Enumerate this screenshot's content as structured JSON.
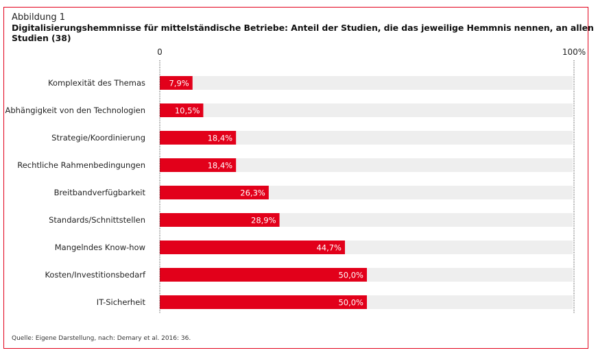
{
  "header": {
    "figure_label": "Abbildung 1",
    "title": "Digitalisierungshemmnisse für mittelständische Betriebe: Anteil der Studien, die das jeweilige Hemmnis nennen, an allen Studien (38)"
  },
  "footer": {
    "source": "Quelle: Eigene Darstellung, nach: Demary et al. 2016: 36."
  },
  "colors": {
    "bar": "#e2001a",
    "track": "#eeeeee",
    "frame": "#e2001a"
  },
  "chart_data": {
    "type": "bar",
    "orientation": "horizontal",
    "xlim": [
      0,
      100
    ],
    "tick_labels": [
      "0",
      "100%"
    ],
    "categories": [
      "Komplexität des Themas",
      "Abhängigkeit von den Technologien",
      "Strategie/Koordinierung",
      "Rechtliche Rahmenbedingungen",
      "Breitbandverfügbarkeit",
      "Standards/Schnittstellen",
      "Mangelndes Know-how",
      "Kosten/Investitionsbedarf",
      "IT-Sicherheit"
    ],
    "values": [
      7.9,
      10.5,
      18.4,
      18.4,
      26.3,
      28.9,
      44.7,
      50.0,
      50.0
    ],
    "data_labels": [
      "7,9%",
      "10,5%",
      "18,4%",
      "18,4%",
      "26,3%",
      "28,9%",
      "44,7%",
      "50,0%",
      "50,0%"
    ]
  }
}
